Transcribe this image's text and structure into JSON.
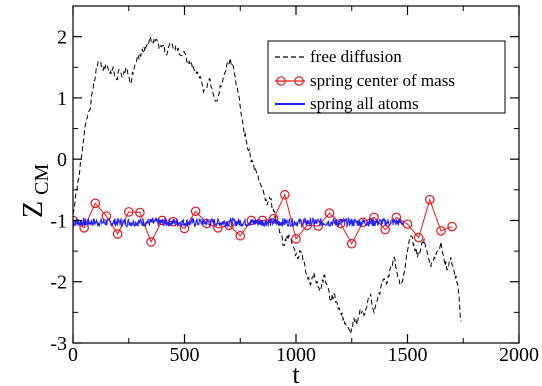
{
  "chart_data": {
    "type": "line",
    "xlabel": "t",
    "ylabel_main": "Z",
    "ylabel_sub": "CM",
    "xlim": [
      0,
      2000
    ],
    "ylim": [
      -3,
      2.5
    ],
    "x_ticks": [
      0,
      500,
      1000,
      1500,
      2000
    ],
    "y_ticks": [
      -3,
      -2,
      -1,
      0,
      1,
      2
    ],
    "x_tick_labels": [
      "0",
      "500",
      "1000",
      "1500",
      "2000"
    ],
    "y_tick_labels": [
      "-3",
      "-2",
      "-1",
      "0",
      "1",
      "2"
    ],
    "grid": false,
    "legend_position": "top-right",
    "series": [
      {
        "name": "free diffusion",
        "style": "dashed",
        "color": "#000000",
        "x": [
          0,
          15,
          30,
          45,
          60,
          75,
          90,
          105,
          120,
          135,
          150,
          165,
          180,
          195,
          210,
          225,
          240,
          255,
          270,
          285,
          300,
          315,
          330,
          345,
          360,
          375,
          390,
          405,
          420,
          435,
          450,
          465,
          480,
          495,
          510,
          525,
          540,
          555,
          570,
          585,
          600,
          615,
          630,
          645,
          660,
          675,
          690,
          705,
          720,
          735,
          750,
          765,
          780,
          795,
          810,
          825,
          840,
          855,
          870,
          885,
          900,
          915,
          930,
          945,
          960,
          975,
          990,
          1005,
          1020,
          1035,
          1050,
          1065,
          1080,
          1095,
          1110,
          1125,
          1140,
          1155,
          1170,
          1185,
          1200,
          1215,
          1230,
          1245,
          1260,
          1275,
          1290,
          1305,
          1320,
          1335,
          1350,
          1365,
          1380,
          1395,
          1410,
          1425,
          1440,
          1455,
          1470,
          1485,
          1500,
          1515,
          1530,
          1545,
          1560,
          1575,
          1590,
          1605,
          1620,
          1635,
          1650,
          1665,
          1680,
          1695,
          1710,
          1725,
          1740
        ],
        "values": [
          -0.9,
          -0.55,
          -0.2,
          0.25,
          0.65,
          0.8,
          1.15,
          1.5,
          1.6,
          1.45,
          1.55,
          1.4,
          1.5,
          1.3,
          1.45,
          1.35,
          1.5,
          1.25,
          1.4,
          1.6,
          1.7,
          1.75,
          1.85,
          2.0,
          1.9,
          1.95,
          1.8,
          1.85,
          1.7,
          1.9,
          1.8,
          1.85,
          1.7,
          1.75,
          1.6,
          1.55,
          1.5,
          1.4,
          1.35,
          1.1,
          1.15,
          1.3,
          1.05,
          0.95,
          1.2,
          1.35,
          1.55,
          1.65,
          1.5,
          1.2,
          0.85,
          0.5,
          0.25,
          0.05,
          -0.1,
          -0.25,
          -0.4,
          -0.55,
          -0.75,
          -0.65,
          -0.85,
          -1.05,
          -1.2,
          -1.4,
          -1.25,
          -1.3,
          -1.45,
          -1.6,
          -1.5,
          -1.65,
          -1.9,
          -2.05,
          -1.85,
          -2.0,
          -2.15,
          -1.9,
          -2.05,
          -2.3,
          -2.2,
          -2.35,
          -2.5,
          -2.6,
          -2.75,
          -2.85,
          -2.6,
          -2.7,
          -2.45,
          -2.55,
          -2.35,
          -2.2,
          -2.5,
          -2.3,
          -2.1,
          -1.95,
          -2.0,
          -1.75,
          -1.6,
          -1.9,
          -2.05,
          -1.85,
          -1.5,
          -1.25,
          -1.4,
          -1.6,
          -1.45,
          -1.3,
          -1.55,
          -1.75,
          -1.6,
          -1.5,
          -1.35,
          -1.65,
          -1.8,
          -1.6,
          -1.85,
          -2.05,
          -2.65
        ]
      },
      {
        "name": "spring center of mass",
        "style": "solid-circles",
        "color": "#e8141c",
        "x": [
          0,
          50,
          100,
          150,
          200,
          250,
          300,
          350,
          400,
          450,
          500,
          550,
          600,
          650,
          700,
          750,
          800,
          850,
          900,
          950,
          1000,
          1050,
          1100,
          1150,
          1200,
          1250,
          1300,
          1350,
          1400,
          1450,
          1500,
          1550,
          1600,
          1650,
          1700
        ],
        "values": [
          -1.0,
          -1.12,
          -0.72,
          -0.93,
          -1.22,
          -0.86,
          -0.87,
          -1.35,
          -1.0,
          -1.02,
          -1.13,
          -0.85,
          -1.05,
          -1.12,
          -1.08,
          -1.25,
          -1.0,
          -1.0,
          -0.97,
          -0.58,
          -1.3,
          -1.08,
          -1.09,
          -0.88,
          -1.05,
          -1.38,
          -1.03,
          -0.95,
          -1.15,
          -0.95,
          -1.06,
          -1.28,
          -0.66,
          -1.17,
          -1.1
        ]
      },
      {
        "name": "spring all atoms",
        "style": "solid-noisy",
        "color": "#1f1fff",
        "x_range": [
          0,
          1480
        ],
        "mean": -1.03,
        "amplitude": 0.07
      }
    ]
  }
}
